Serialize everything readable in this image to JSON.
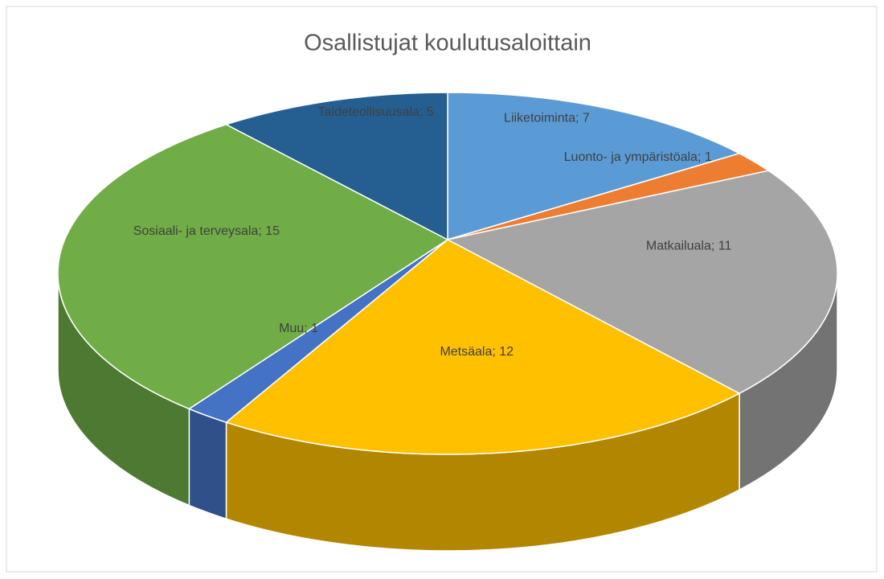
{
  "chart_data": {
    "type": "pie3d",
    "title": "Osallistujat koulutusaloittain",
    "categories": [
      "Liiketoiminta; 7",
      "Luonto- ja ympäristöala; 1",
      "Matkailuala; 11",
      "Metsäala; 12",
      "Muu; 1",
      "Sosiaali- ja terveysala; 15",
      "Taideteollisuusala; 5"
    ],
    "values": [
      7,
      1,
      11,
      12,
      1,
      15,
      5
    ],
    "colors": [
      "#5b9bd5",
      "#ed7d31",
      "#a5a5a5",
      "#ffc000",
      "#4472c4",
      "#70ad47",
      "#255e91"
    ]
  }
}
